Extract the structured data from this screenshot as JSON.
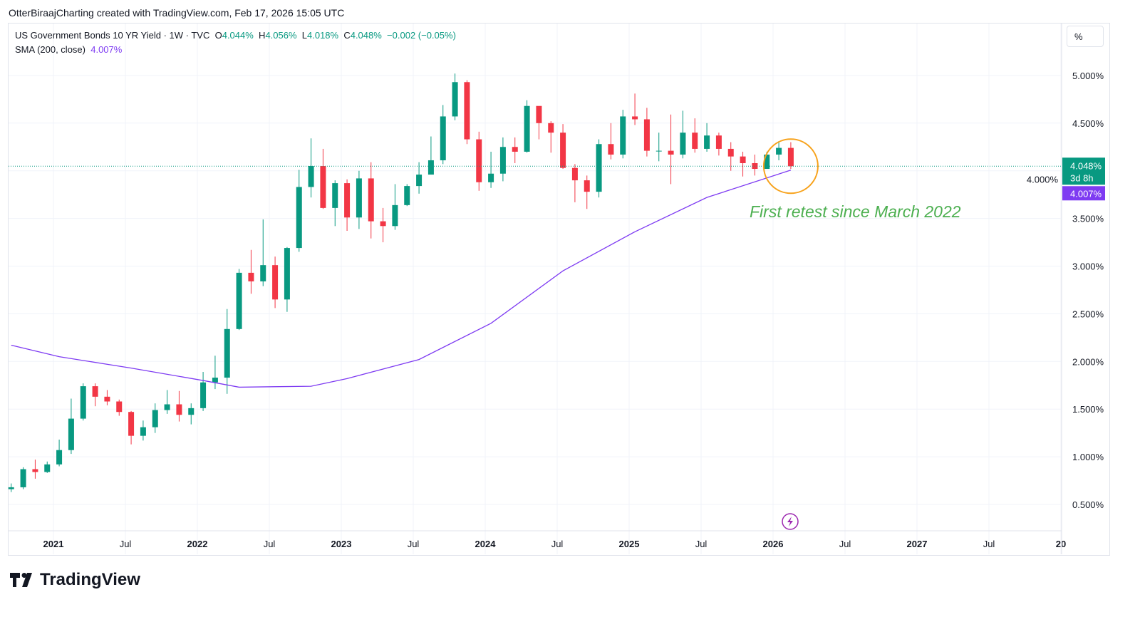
{
  "credit": "OtterBiraajCharting created with TradingView.com, Feb 17, 2026 15:05 UTC",
  "legend": {
    "symbol": "US Government Bonds 10 YR Yield · 1W · TVC",
    "o_label": "O",
    "o": "4.044%",
    "h_label": "H",
    "h": "4.056%",
    "l_label": "L",
    "l": "4.018%",
    "c_label": "C",
    "c": "4.048%",
    "change": "−0.002 (−0.05%)",
    "sma_label": "SMA (200, close)",
    "sma_value": "4.007%"
  },
  "scale_button": "%",
  "price_label": {
    "value": "4.048%",
    "countdown": "3d 8h",
    "sma": "4.007%"
  },
  "annotation": "First retest since March 2022",
  "logo": "TradingView",
  "colors": {
    "up": "#089981",
    "down": "#f23645",
    "sma": "#7e3bf2",
    "annotation": "#4caf50",
    "circle": "#f7a21b"
  },
  "chart_data": {
    "type": "candlestick",
    "ylim": [
      0.25,
      5.25
    ],
    "y_ticks": [
      "0.500%",
      "1.000%",
      "1.500%",
      "2.000%",
      "2.500%",
      "3.000%",
      "3.500%",
      "4.000%",
      "4.500%",
      "5.000%"
    ],
    "x_ticks": [
      [
        "2021",
        "2021-01"
      ],
      [
        "Jul",
        "2021-07"
      ],
      [
        "2022",
        "2022-01"
      ],
      [
        "Jul",
        "2022-07"
      ],
      [
        "2023",
        "2023-01"
      ],
      [
        "Jul",
        "2023-07"
      ],
      [
        "2024",
        "2024-01"
      ],
      [
        "Jul",
        "2024-07"
      ],
      [
        "2025",
        "2025-01"
      ],
      [
        "Jul",
        "2025-07"
      ],
      [
        "2026",
        "2026-01"
      ],
      [
        "Jul",
        "2026-07"
      ],
      [
        "2027",
        "2027-01"
      ],
      [
        "Jul",
        "2027-07"
      ],
      [
        "20",
        "2028-01"
      ]
    ],
    "grid": true,
    "candles": [
      [
        "2020-09",
        0.66,
        0.72,
        0.63,
        0.68
      ],
      [
        "2020-10",
        0.68,
        0.89,
        0.66,
        0.87
      ],
      [
        "2020-11",
        0.87,
        0.97,
        0.77,
        0.84
      ],
      [
        "2020-12",
        0.84,
        0.95,
        0.83,
        0.92
      ],
      [
        "2021-01",
        0.92,
        1.18,
        0.9,
        1.07
      ],
      [
        "2021-02",
        1.07,
        1.61,
        1.03,
        1.4
      ],
      [
        "2021-03",
        1.4,
        1.77,
        1.38,
        1.74
      ],
      [
        "2021-04",
        1.74,
        1.77,
        1.53,
        1.63
      ],
      [
        "2021-05",
        1.63,
        1.7,
        1.54,
        1.58
      ],
      [
        "2021-06",
        1.58,
        1.6,
        1.43,
        1.47
      ],
      [
        "2021-07",
        1.47,
        1.48,
        1.13,
        1.22
      ],
      [
        "2021-08",
        1.22,
        1.38,
        1.17,
        1.31
      ],
      [
        "2021-09",
        1.31,
        1.56,
        1.25,
        1.49
      ],
      [
        "2021-10",
        1.49,
        1.7,
        1.45,
        1.55
      ],
      [
        "2021-11",
        1.55,
        1.69,
        1.37,
        1.44
      ],
      [
        "2021-12",
        1.44,
        1.56,
        1.34,
        1.51
      ],
      [
        "2022-01",
        1.51,
        1.89,
        1.48,
        1.78
      ],
      [
        "2022-02",
        1.78,
        2.06,
        1.71,
        1.83
      ],
      [
        "2022-03",
        1.83,
        2.55,
        1.66,
        2.34
      ],
      [
        "2022-04",
        2.34,
        2.97,
        2.33,
        2.93
      ],
      [
        "2022-05",
        2.93,
        3.17,
        2.71,
        2.84
      ],
      [
        "2022-06",
        2.84,
        3.49,
        2.79,
        3.01
      ],
      [
        "2022-07",
        3.01,
        3.1,
        2.56,
        2.65
      ],
      [
        "2022-08",
        2.65,
        3.2,
        2.52,
        3.19
      ],
      [
        "2022-09",
        3.19,
        4.01,
        3.15,
        3.83
      ],
      [
        "2022-10",
        3.83,
        4.34,
        3.72,
        4.05
      ],
      [
        "2022-11",
        4.05,
        4.23,
        3.6,
        3.61
      ],
      [
        "2022-12",
        3.61,
        3.9,
        3.42,
        3.87
      ],
      [
        "2023-01",
        3.87,
        3.91,
        3.37,
        3.51
      ],
      [
        "2023-02",
        3.51,
        4.0,
        3.39,
        3.92
      ],
      [
        "2023-03",
        3.92,
        4.09,
        3.29,
        3.47
      ],
      [
        "2023-04",
        3.47,
        3.61,
        3.25,
        3.42
      ],
      [
        "2023-05",
        3.42,
        3.86,
        3.38,
        3.64
      ],
      [
        "2023-06",
        3.64,
        3.86,
        3.63,
        3.84
      ],
      [
        "2023-07",
        3.84,
        4.09,
        3.76,
        3.96
      ],
      [
        "2023-08",
        3.96,
        4.36,
        3.97,
        4.11
      ],
      [
        "2023-09",
        4.11,
        4.69,
        4.07,
        4.57
      ],
      [
        "2023-10",
        4.57,
        5.02,
        4.53,
        4.93
      ],
      [
        "2023-11",
        4.93,
        4.95,
        4.28,
        4.33
      ],
      [
        "2023-12",
        4.33,
        4.41,
        3.79,
        3.88
      ],
      [
        "2024-01",
        3.88,
        4.2,
        3.82,
        3.97
      ],
      [
        "2024-02",
        3.97,
        4.35,
        3.89,
        4.25
      ],
      [
        "2024-03",
        4.25,
        4.35,
        4.08,
        4.2
      ],
      [
        "2024-04",
        4.2,
        4.74,
        4.19,
        4.68
      ],
      [
        "2024-05",
        4.68,
        4.64,
        4.33,
        4.5
      ],
      [
        "2024-06",
        4.5,
        4.52,
        4.19,
        4.4
      ],
      [
        "2024-07",
        4.4,
        4.49,
        4.02,
        4.03
      ],
      [
        "2024-08",
        4.03,
        4.07,
        3.67,
        3.9
      ],
      [
        "2024-09",
        3.9,
        3.95,
        3.6,
        3.78
      ],
      [
        "2024-10",
        3.78,
        4.33,
        3.72,
        4.28
      ],
      [
        "2024-11",
        4.28,
        4.5,
        4.12,
        4.17
      ],
      [
        "2024-12",
        4.17,
        4.64,
        4.13,
        4.57
      ],
      [
        "2025-01",
        4.57,
        4.81,
        4.48,
        4.54
      ],
      [
        "2025-02",
        4.54,
        4.66,
        4.15,
        4.21
      ],
      [
        "2025-03",
        4.21,
        4.4,
        4.1,
        4.21
      ],
      [
        "2025-04",
        4.21,
        4.59,
        3.86,
        4.17
      ],
      [
        "2025-05",
        4.17,
        4.63,
        4.13,
        4.4
      ],
      [
        "2025-06",
        4.4,
        4.55,
        4.19,
        4.23
      ],
      [
        "2025-07",
        4.23,
        4.5,
        4.2,
        4.37
      ],
      [
        "2025-08",
        4.37,
        4.4,
        4.16,
        4.23
      ],
      [
        "2025-09",
        4.23,
        4.3,
        4.0,
        4.15
      ],
      [
        "2025-10",
        4.15,
        4.2,
        3.94,
        4.08
      ],
      [
        "2025-11",
        4.08,
        4.17,
        3.95,
        4.02
      ],
      [
        "2025-12",
        4.02,
        4.2,
        4.05,
        4.17
      ],
      [
        "2026-01",
        4.17,
        4.31,
        4.11,
        4.24
      ],
      [
        "2026-02",
        4.24,
        4.3,
        4.02,
        4.048
      ]
    ],
    "sma": [
      [
        "2020-09",
        2.17
      ],
      [
        "2021-01",
        2.05
      ],
      [
        "2021-07",
        1.93
      ],
      [
        "2022-01",
        1.8
      ],
      [
        "2022-04",
        1.73
      ],
      [
        "2022-10",
        1.74
      ],
      [
        "2023-01",
        1.82
      ],
      [
        "2023-07",
        2.02
      ],
      [
        "2024-01",
        2.4
      ],
      [
        "2024-07",
        2.95
      ],
      [
        "2025-01",
        3.36
      ],
      [
        "2025-07",
        3.72
      ],
      [
        "2026-02",
        4.007
      ]
    ]
  }
}
